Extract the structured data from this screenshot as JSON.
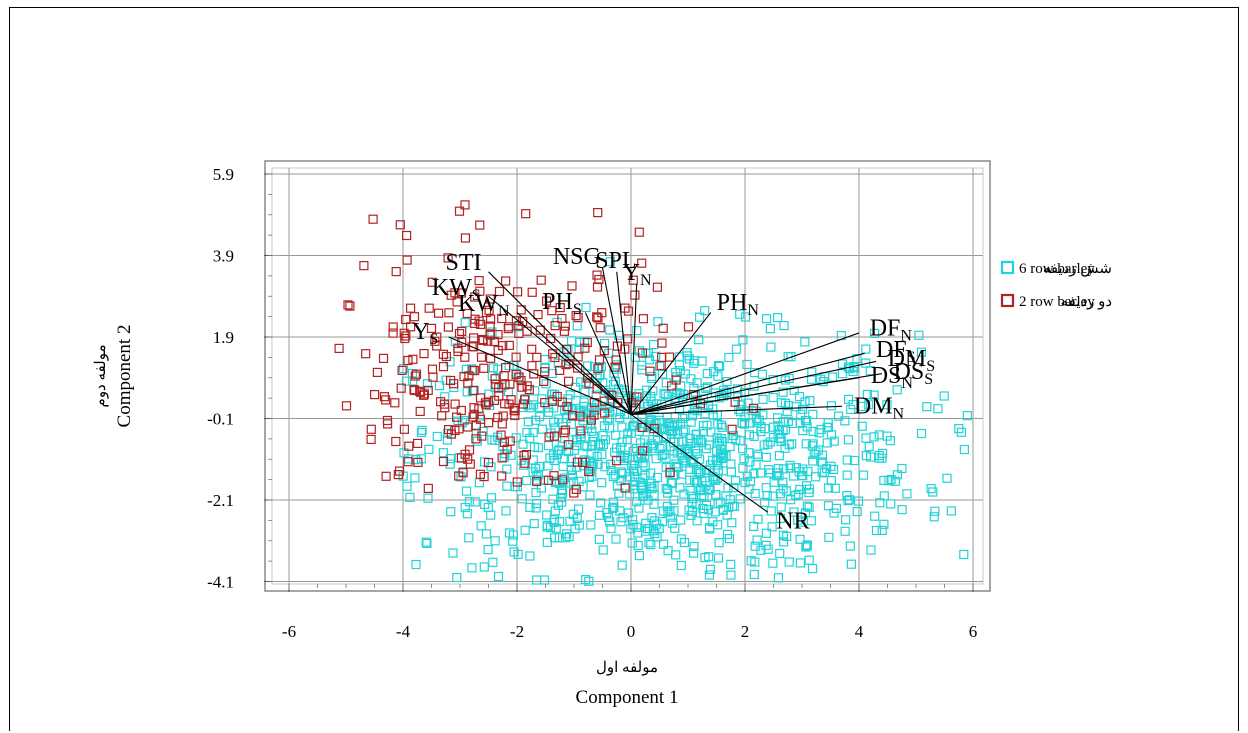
{
  "chart_data": {
    "type": "scatter",
    "xlabel": "Component 1",
    "xlabel_persian": "مولفه اول",
    "ylabel": "Component 2",
    "ylabel_persian": "مولفه دوم",
    "xlim": [
      -6.5,
      6.5
    ],
    "ylim": [
      -4.6,
      6.2
    ],
    "x_ticks": [
      -6,
      -4,
      -2,
      0,
      2,
      4,
      6
    ],
    "y_ticks": [
      -4.1,
      -2.1,
      -0.1,
      1.9,
      3.9,
      5.9
    ],
    "grid": true,
    "legend_position": "right",
    "series": [
      {
        "name": "شش ردیفه",
        "name_en": "6 row barley",
        "color": "#22d3d8",
        "marker": "hollow-square",
        "count": 1050,
        "center": [
          0.6,
          -1.0
        ],
        "spread": [
          2.2,
          1.45
        ],
        "extent": {
          "x": [
            -4.0,
            5.9
          ],
          "y": [
            -4.1,
            5.6
          ]
        }
      },
      {
        "name": "دو ردیفه",
        "name_en": "2 row barley",
        "color": "#b22222",
        "marker": "hollow-square",
        "count": 320,
        "center": [
          -2.3,
          0.8
        ],
        "spread": [
          1.5,
          1.6
        ],
        "extent": {
          "x": [
            -5.2,
            2.2
          ],
          "y": [
            -2.0,
            5.4
          ]
        }
      }
    ],
    "vectors": [
      {
        "label": "STI",
        "sub": "",
        "end": [
          -2.5,
          3.5
        ]
      },
      {
        "label": "KW",
        "sub": "S",
        "end": [
          -2.5,
          2.9
        ]
      },
      {
        "label": "KW",
        "sub": "N",
        "end": [
          -2.0,
          2.5
        ]
      },
      {
        "label": "Y",
        "sub": "S",
        "end": [
          -3.2,
          1.9
        ]
      },
      {
        "label": "NSG",
        "sub": "",
        "end": [
          -0.5,
          3.6
        ]
      },
      {
        "label": "SPL",
        "sub": "",
        "end": [
          -0.25,
          3.5
        ]
      },
      {
        "label": "Y",
        "sub": "N",
        "end": [
          0.1,
          3.2
        ]
      },
      {
        "label": "PH",
        "sub": "S",
        "end": [
          -0.8,
          2.5
        ]
      },
      {
        "label": "PH",
        "sub": "N",
        "end": [
          1.4,
          2.5
        ]
      },
      {
        "label": "DF",
        "sub": "N",
        "end": [
          4.0,
          2.0
        ]
      },
      {
        "label": "DF",
        "sub": "S",
        "end": [
          4.1,
          1.5
        ]
      },
      {
        "label": "DM",
        "sub": "S",
        "end": [
          4.3,
          1.3
        ]
      },
      {
        "label": "DS",
        "sub": "N",
        "end": [
          4.0,
          0.9
        ]
      },
      {
        "label": "DS",
        "sub": "S",
        "end": [
          4.4,
          1.0
        ]
      },
      {
        "label": "DM",
        "sub": "N",
        "end": [
          3.7,
          0.2
        ]
      },
      {
        "label": "NR",
        "sub": "",
        "end": [
          2.4,
          -2.4
        ]
      }
    ]
  }
}
